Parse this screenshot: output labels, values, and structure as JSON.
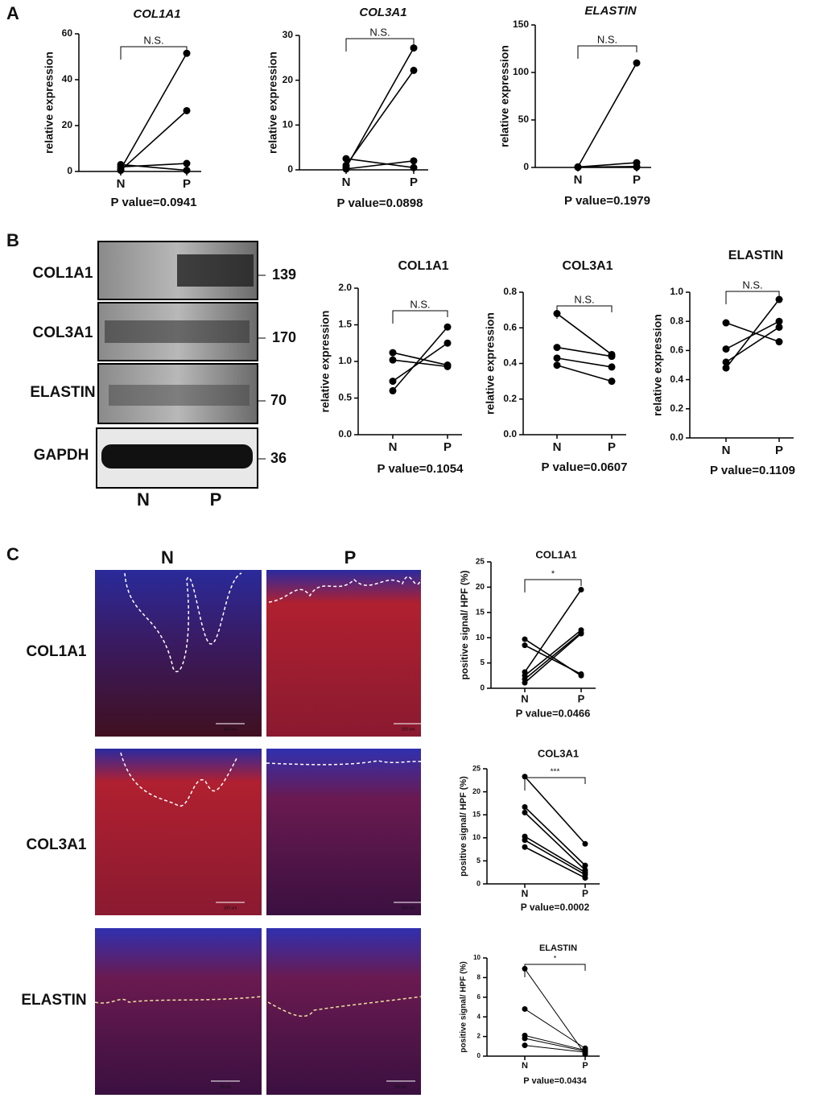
{
  "panels": [
    "A",
    "B",
    "C"
  ],
  "blot": {
    "bands": [
      "COL1A1",
      "COL3A1",
      "ELASTIN",
      "GAPDH"
    ],
    "sizes": [
      "139",
      "170",
      "70",
      "36"
    ],
    "lanes": [
      "N",
      "P"
    ]
  },
  "images": {
    "columns": [
      "N",
      "P"
    ],
    "rows": [
      "COL1A1",
      "COL3A1",
      "ELASTIN"
    ],
    "scale_bars": [
      "100 um",
      "100 um",
      "100 um",
      "100 um",
      "50 um",
      "50 um"
    ]
  },
  "chart_data": [
    {
      "type": "line",
      "title": "COL1A1",
      "y_label": "relative expression",
      "categories": [
        "N",
        "P"
      ],
      "ylim": [
        0,
        60
      ],
      "yticks": [
        0,
        20,
        40,
        60
      ],
      "significance": "N.S.",
      "p_value": "P value=0.0941",
      "color": "#000000",
      "series": [
        {
          "values": [
            1,
            51.5
          ]
        },
        {
          "values": [
            0.5,
            26.5
          ]
        },
        {
          "values": [
            3,
            0.5
          ]
        },
        {
          "values": [
            2,
            3.5
          ]
        }
      ]
    },
    {
      "type": "line",
      "title": "COL3A1",
      "y_label": "relative expression",
      "categories": [
        "N",
        "P"
      ],
      "ylim": [
        0,
        30
      ],
      "yticks": [
        0,
        10,
        20,
        30
      ],
      "significance": "N.S.",
      "p_value": "P value=0.0898",
      "color": "#000000",
      "series": [
        {
          "values": [
            0.5,
            27.2
          ]
        },
        {
          "values": [
            1,
            22.2
          ]
        },
        {
          "values": [
            2.5,
            0.5
          ]
        },
        {
          "values": [
            0.2,
            2
          ]
        }
      ]
    },
    {
      "type": "line",
      "title": "ELASTIN",
      "y_label": "relative expression",
      "categories": [
        "N",
        "P"
      ],
      "ylim": [
        0,
        150
      ],
      "yticks": [
        0,
        50,
        100,
        150
      ],
      "significance": "N.S.",
      "p_value": "P value=0.1979",
      "color": "#000000",
      "series": [
        {
          "values": [
            0.5,
            110
          ]
        },
        {
          "values": [
            0.5,
            5
          ]
        },
        {
          "values": [
            0.3,
            1
          ]
        },
        {
          "values": [
            0.2,
            0.5
          ]
        }
      ]
    },
    {
      "type": "line",
      "title": "COL1A1",
      "y_label": "relative expression",
      "categories": [
        "N",
        "P"
      ],
      "ylim": [
        0,
        2
      ],
      "yticks": [
        {
          "value": 0,
          "label": "0.0"
        },
        0.5,
        {
          "value": 1,
          "label": "1.0"
        },
        1.5,
        {
          "value": 2,
          "label": "2.0"
        }
      ],
      "significance": "N.S.",
      "p_value": "P value=0.1054",
      "color": "#000000",
      "series": [
        {
          "values": [
            0.6,
            1.47
          ]
        },
        {
          "values": [
            0.73,
            1.25
          ]
        },
        {
          "values": [
            1.02,
            0.93
          ]
        },
        {
          "values": [
            1.12,
            0.95
          ]
        }
      ]
    },
    {
      "type": "line",
      "title": "COL3A1",
      "y_label": "relative expression",
      "categories": [
        "N",
        "P"
      ],
      "ylim": [
        0,
        0.8
      ],
      "yticks": [
        {
          "value": 0,
          "label": "0.0"
        },
        0.2,
        0.4,
        0.6,
        0.8
      ],
      "significance": "N.S.",
      "p_value": "P value=0.0607",
      "color": "#000000",
      "series": [
        {
          "values": [
            0.68,
            0.45
          ]
        },
        {
          "values": [
            0.49,
            0.44
          ]
        },
        {
          "values": [
            0.43,
            0.38
          ]
        },
        {
          "values": [
            0.39,
            0.3
          ]
        }
      ]
    },
    {
      "type": "line",
      "title": "ELASTIN",
      "y_label": "relative expression",
      "categories": [
        "N",
        "P"
      ],
      "ylim": [
        0,
        1
      ],
      "yticks": [
        {
          "value": 0,
          "label": "0.0"
        },
        0.2,
        0.4,
        0.6,
        0.8,
        {
          "value": 1,
          "label": "1.0"
        }
      ],
      "significance": "N.S.",
      "p_value": "P value=0.1109",
      "color": "#000000",
      "series": [
        {
          "values": [
            0.79,
            0.66
          ]
        },
        {
          "values": [
            0.61,
            0.8
          ]
        },
        {
          "values": [
            0.52,
            0.76
          ]
        },
        {
          "values": [
            0.48,
            0.95
          ]
        }
      ]
    },
    {
      "type": "line",
      "title": "COL1A1",
      "y_label": "positive signal/ HPF (%)",
      "categories": [
        "N",
        "P"
      ],
      "ylim": [
        0,
        25
      ],
      "yticks": [
        0,
        5,
        10,
        15,
        20,
        25
      ],
      "significance": "*",
      "p_value": "P value=0.0466",
      "color": "#000000",
      "series": [
        {
          "values": [
            9.7,
            2.5
          ]
        },
        {
          "values": [
            8.5,
            2.8
          ]
        },
        {
          "values": [
            3.2,
            19.5
          ]
        },
        {
          "values": [
            2.5,
            11.5
          ]
        },
        {
          "values": [
            1.8,
            11
          ]
        },
        {
          "values": [
            1.1,
            10.8
          ]
        }
      ]
    },
    {
      "type": "line",
      "title": "COL3A1",
      "y_label": "positive signal/ HPF (%)",
      "categories": [
        "N",
        "P"
      ],
      "ylim": [
        0,
        25
      ],
      "yticks": [
        0,
        5,
        10,
        15,
        20,
        25
      ],
      "significance": "***",
      "p_value": "P value=0.0002",
      "color": "#000000",
      "series": [
        {
          "values": [
            23.3,
            8.7
          ]
        },
        {
          "values": [
            16.7,
            4
          ]
        },
        {
          "values": [
            15.5,
            3
          ]
        },
        {
          "values": [
            10.3,
            2.5
          ]
        },
        {
          "values": [
            9.5,
            2
          ]
        },
        {
          "values": [
            8,
            1.3
          ]
        }
      ]
    },
    {
      "type": "line",
      "title": "ELASTIN",
      "y_label": "positive signal/ HPF (%)",
      "categories": [
        "N",
        "P"
      ],
      "ylim": [
        0,
        10
      ],
      "yticks": [
        0,
        2,
        4,
        6,
        8,
        10
      ],
      "significance": "*",
      "p_value": "P value=0.0434",
      "color": "#000000",
      "series": [
        {
          "values": [
            8.9,
            0.2
          ]
        },
        {
          "values": [
            4.8,
            0.8
          ]
        },
        {
          "values": [
            2.1,
            0.6
          ]
        },
        {
          "values": [
            1.8,
            0.5
          ]
        },
        {
          "values": [
            1.1,
            0.4
          ]
        }
      ]
    }
  ]
}
